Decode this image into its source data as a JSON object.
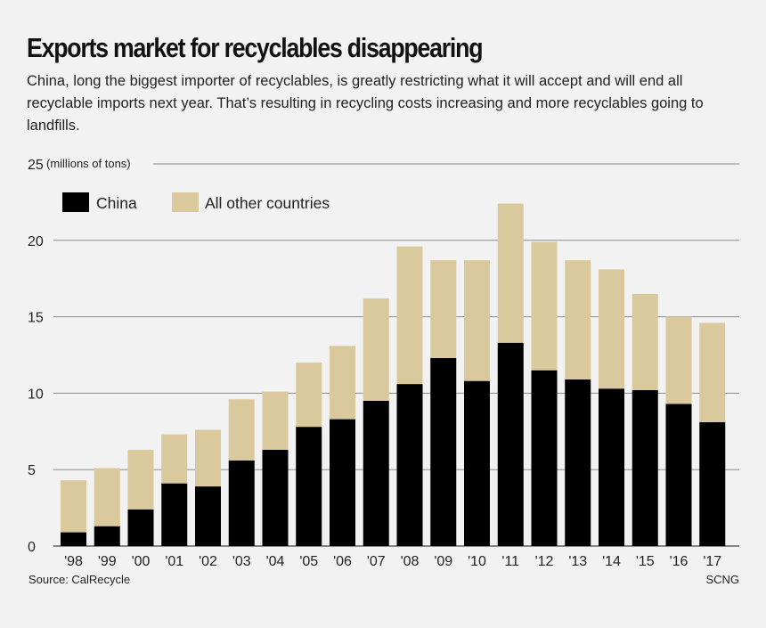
{
  "title": "Exports market for recyclables disappearing",
  "subtitle": "China, long the biggest importer of recyclables, is greatly restricting what it will accept and will end all recyclable imports next year. That’s resulting in recycling costs increasing and more recyclables going to landfills.",
  "source": "Source: CalRecycle",
  "credit": "SCNG",
  "colors": {
    "china": "#000000",
    "other": "#dac99c",
    "grid": "#8a8a8a",
    "background": "#f2f2f2"
  },
  "chart_data": {
    "type": "bar",
    "stacked": true,
    "unit_label": "(millions of tons)",
    "categories": [
      "'98",
      "'99",
      "'00",
      "'01",
      "'02",
      "'03",
      "'04",
      "'05",
      "'06",
      "'07",
      "'08",
      "'09",
      "'10",
      "'11",
      "'12",
      "'13",
      "'14",
      "'15",
      "'16",
      "'17"
    ],
    "series": [
      {
        "name": "China",
        "color": "#000000",
        "values": [
          0.9,
          1.3,
          2.4,
          4.1,
          3.9,
          5.6,
          6.3,
          7.8,
          8.3,
          9.5,
          10.6,
          12.3,
          10.8,
          13.3,
          11.5,
          10.9,
          10.3,
          10.2,
          9.3,
          8.1
        ]
      },
      {
        "name": "All other countries",
        "color": "#dac99c",
        "values": [
          3.4,
          3.8,
          3.9,
          3.2,
          3.7,
          4.0,
          3.8,
          4.2,
          4.8,
          6.7,
          9.0,
          6.4,
          7.9,
          9.1,
          8.4,
          7.8,
          7.8,
          6.3,
          5.7,
          6.5
        ]
      }
    ],
    "ylim": [
      0,
      25
    ],
    "yticks": [
      0,
      5,
      10,
      15,
      20,
      25
    ],
    "grid": true,
    "legend_placement": "top-left"
  }
}
